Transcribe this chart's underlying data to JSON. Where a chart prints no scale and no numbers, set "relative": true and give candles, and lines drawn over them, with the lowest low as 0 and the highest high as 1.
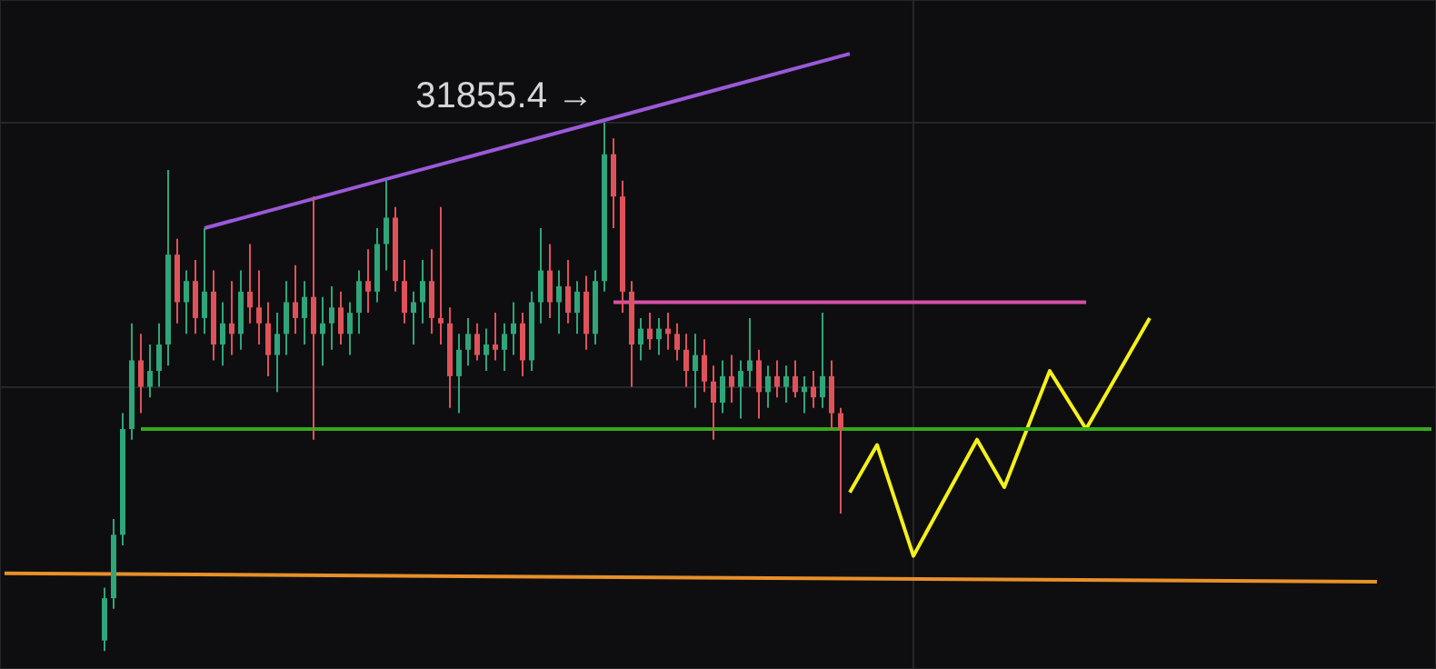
{
  "chart_data": {
    "type": "candlestick",
    "relative": true,
    "grid": true,
    "legend": false,
    "tick_labels": false,
    "categories": [
      null,
      null,
      null,
      null,
      null,
      null,
      null,
      null,
      null,
      null,
      null,
      null,
      null,
      null,
      null,
      null,
      null,
      null,
      null,
      null,
      null,
      null,
      null,
      null,
      null,
      null,
      null,
      null,
      null,
      null,
      null,
      null,
      null,
      null,
      null,
      null,
      null,
      null,
      null,
      null,
      null,
      null,
      null,
      null,
      null,
      null,
      null,
      null,
      null,
      null,
      null,
      null,
      null,
      null,
      null,
      null,
      null,
      null,
      null,
      null,
      null,
      null,
      null,
      null,
      null,
      null,
      null,
      null,
      null,
      null,
      null,
      null,
      null,
      null,
      null,
      null,
      null,
      null,
      null,
      null,
      null,
      null,
      null,
      null,
      null,
      null,
      null,
      null,
      null,
      null,
      null,
      null,
      null,
      null,
      null,
      null,
      null,
      null,
      null,
      null,
      null,
      null,
      null,
      null,
      null,
      null,
      null,
      null,
      null,
      null,
      null,
      null,
      null,
      null,
      null,
      null,
      null,
      null,
      null,
      null,
      null,
      null,
      null,
      null,
      null,
      null,
      null,
      null,
      null,
      null,
      null,
      null,
      null,
      null,
      null,
      null,
      null,
      null,
      null,
      null,
      null,
      null,
      null,
      null,
      null,
      null,
      null,
      null,
      null,
      null,
      null,
      null,
      null,
      null,
      null,
      null,
      null,
      null
    ],
    "ohlc": [
      null,
      null,
      null,
      null,
      null,
      null,
      null,
      null,
      null,
      null,
      null,
      [
        0.02,
        0.12,
        0,
        0.1
      ],
      [
        0.1,
        0.25,
        0.08,
        0.22
      ],
      [
        0.22,
        0.45,
        0.2,
        0.42
      ],
      [
        0.42,
        0.62,
        0.4,
        0.55
      ],
      [
        0.55,
        0.6,
        0.45,
        0.5
      ],
      [
        0.5,
        0.58,
        0.48,
        0.53
      ],
      [
        0.53,
        0.62,
        0.5,
        0.58
      ],
      [
        0.58,
        0.91,
        0.54,
        0.75
      ],
      [
        0.75,
        0.78,
        0.62,
        0.66
      ],
      [
        0.66,
        0.72,
        0.6,
        0.7
      ],
      [
        0.7,
        0.74,
        0.6,
        0.63
      ],
      [
        0.63,
        0.8,
        0.6,
        0.68
      ],
      [
        0.68,
        0.72,
        0.55,
        0.58
      ],
      [
        0.58,
        0.66,
        0.54,
        0.62
      ],
      [
        0.62,
        0.7,
        0.56,
        0.6
      ],
      [
        0.6,
        0.72,
        0.57,
        0.68
      ],
      [
        0.68,
        0.77,
        0.62,
        0.65
      ],
      [
        0.65,
        0.72,
        0.58,
        0.62
      ],
      [
        0.62,
        0.66,
        0.52,
        0.56
      ],
      [
        0.56,
        0.64,
        0.49,
        0.6
      ],
      [
        0.6,
        0.7,
        0.56,
        0.66
      ],
      [
        0.66,
        0.73,
        0.6,
        0.63
      ],
      [
        0.63,
        0.7,
        0.58,
        0.67
      ],
      [
        0.67,
        0.86,
        0.4,
        0.6
      ],
      [
        0.6,
        0.67,
        0.54,
        0.62
      ],
      [
        0.62,
        0.69,
        0.57,
        0.65
      ],
      [
        0.65,
        0.68,
        0.58,
        0.6
      ],
      [
        0.6,
        0.66,
        0.56,
        0.64
      ],
      [
        0.64,
        0.72,
        0.6,
        0.7
      ],
      [
        0.7,
        0.76,
        0.64,
        0.68
      ],
      [
        0.68,
        0.8,
        0.66,
        0.77
      ],
      [
        0.77,
        0.89,
        0.72,
        0.82
      ],
      [
        0.82,
        0.84,
        0.68,
        0.7
      ],
      [
        0.7,
        0.74,
        0.62,
        0.64
      ],
      [
        0.64,
        0.68,
        0.58,
        0.66
      ],
      [
        0.66,
        0.74,
        0.62,
        0.7
      ],
      [
        0.7,
        0.76,
        0.6,
        0.63
      ],
      [
        0.63,
        0.84,
        0.58,
        0.62
      ],
      [
        0.62,
        0.65,
        0.46,
        0.52
      ],
      [
        0.52,
        0.6,
        0.45,
        0.57
      ],
      [
        0.57,
        0.63,
        0.54,
        0.6
      ],
      [
        0.6,
        0.62,
        0.55,
        0.56
      ],
      [
        0.56,
        0.61,
        0.53,
        0.58
      ],
      [
        0.58,
        0.64,
        0.55,
        0.57
      ],
      [
        0.57,
        0.62,
        0.53,
        0.6
      ],
      [
        0.6,
        0.66,
        0.56,
        0.62
      ],
      [
        0.62,
        0.64,
        0.52,
        0.55
      ],
      [
        0.55,
        0.68,
        0.53,
        0.66
      ],
      [
        0.66,
        0.8,
        0.62,
        0.72
      ],
      [
        0.72,
        0.77,
        0.63,
        0.66
      ],
      [
        0.66,
        0.72,
        0.6,
        0.69
      ],
      [
        0.69,
        0.74,
        0.62,
        0.64
      ],
      [
        0.64,
        0.7,
        0.6,
        0.68
      ],
      [
        0.68,
        0.71,
        0.57,
        0.6
      ],
      [
        0.6,
        0.72,
        0.58,
        0.7
      ],
      [
        0.7,
        1,
        0.68,
        0.94
      ],
      [
        0.94,
        0.97,
        0.8,
        0.86
      ],
      [
        0.86,
        0.89,
        0.64,
        0.68
      ],
      [
        0.68,
        0.7,
        0.5,
        0.58
      ],
      [
        0.58,
        0.63,
        0.55,
        0.61
      ],
      [
        0.61,
        0.64,
        0.57,
        0.59
      ],
      [
        0.59,
        0.63,
        0.56,
        0.61
      ],
      [
        0.61,
        0.64,
        0.57,
        0.6
      ],
      [
        0.6,
        0.62,
        0.55,
        0.57
      ],
      [
        0.57,
        0.6,
        0.5,
        0.53
      ],
      [
        0.53,
        0.6,
        0.46,
        0.56
      ],
      [
        0.56,
        0.59,
        0.49,
        0.51
      ],
      [
        0.51,
        0.54,
        0.4,
        0.47
      ],
      [
        0.47,
        0.55,
        0.45,
        0.52
      ],
      [
        0.52,
        0.56,
        0.47,
        0.5
      ],
      [
        0.5,
        0.55,
        0.44,
        0.53
      ],
      [
        0.53,
        0.63,
        0.5,
        0.55
      ],
      [
        0.55,
        0.57,
        0.44,
        0.49
      ],
      [
        0.49,
        0.54,
        0.46,
        0.52
      ],
      [
        0.52,
        0.55,
        0.48,
        0.5
      ],
      [
        0.5,
        0.54,
        0.47,
        0.52
      ],
      [
        0.52,
        0.55,
        0.48,
        0.49
      ],
      [
        0.49,
        0.52,
        0.45,
        0.5
      ],
      [
        0.5,
        0.53,
        0.46,
        0.48
      ],
      [
        0.48,
        0.64,
        0.46,
        0.52
      ],
      [
        0.52,
        0.55,
        0.42,
        0.45
      ],
      [
        0.45,
        0.46,
        0.26,
        0.42
      ],
      null,
      null,
      null,
      null,
      null,
      null,
      null,
      null,
      null,
      null,
      null,
      null,
      null,
      null,
      null,
      null,
      null,
      null,
      null,
      null,
      null,
      null,
      null,
      null,
      null,
      null,
      null,
      null,
      null,
      null,
      null,
      null,
      null,
      null,
      null,
      null,
      null,
      null,
      null,
      null,
      null,
      null,
      null,
      null,
      null,
      null,
      null,
      null,
      null,
      null,
      null,
      null,
      null,
      null,
      null,
      null,
      null,
      null,
      null,
      null,
      null,
      null,
      null,
      null,
      null
    ],
    "series": [
      {
        "type": "line",
        "color": "#9b59d9",
        "values": [
          null,
          null,
          null,
          null,
          null,
          null,
          null,
          null,
          null,
          null,
          null,
          null,
          null,
          null,
          null,
          null,
          null,
          null,
          null,
          null,
          null,
          null,
          0.8,
          null,
          null,
          null,
          null,
          null,
          null,
          null,
          null,
          null,
          null,
          null,
          null,
          null,
          null,
          null,
          null,
          null,
          null,
          null,
          null,
          null,
          null,
          null,
          null,
          null,
          null,
          null,
          null,
          null,
          null,
          null,
          null,
          null,
          null,
          null,
          null,
          null,
          null,
          null,
          null,
          null,
          null,
          null,
          null,
          null,
          null,
          null,
          null,
          null,
          null,
          null,
          null,
          null,
          null,
          null,
          null,
          null,
          null,
          null,
          null,
          null,
          null,
          null,
          null,
          null,
          null,
          null,
          null,
          null,
          null,
          1.13,
          null,
          null,
          null,
          null,
          null,
          null,
          null,
          null,
          null,
          null,
          null,
          null,
          null,
          null,
          null,
          null,
          null,
          null,
          null,
          null,
          null,
          null,
          null,
          null,
          null,
          null,
          null,
          null,
          null,
          null,
          null,
          null,
          null,
          null,
          null,
          null,
          null,
          null,
          null,
          null,
          null,
          null,
          null,
          null,
          null,
          null,
          null,
          null,
          null,
          null,
          null,
          null,
          null,
          null,
          null,
          null,
          null,
          null,
          null,
          null,
          null,
          null,
          null,
          null
        ]
      },
      {
        "type": "line",
        "color": "#d84fa6",
        "values": [
          null,
          null,
          null,
          null,
          null,
          null,
          null,
          null,
          null,
          null,
          null,
          null,
          null,
          null,
          null,
          null,
          null,
          null,
          null,
          null,
          null,
          null,
          null,
          null,
          null,
          null,
          null,
          null,
          null,
          null,
          null,
          null,
          null,
          null,
          null,
          null,
          null,
          null,
          null,
          null,
          null,
          null,
          null,
          null,
          null,
          null,
          null,
          null,
          null,
          null,
          null,
          null,
          null,
          null,
          null,
          null,
          null,
          null,
          null,
          null,
          null,
          null,
          null,
          null,
          null,
          null,
          null,
          0.66,
          null,
          null,
          null,
          null,
          null,
          null,
          null,
          null,
          null,
          null,
          null,
          null,
          null,
          null,
          null,
          null,
          null,
          null,
          null,
          null,
          null,
          null,
          null,
          null,
          null,
          null,
          null,
          null,
          null,
          null,
          null,
          null,
          null,
          null,
          null,
          null,
          null,
          null,
          null,
          null,
          null,
          null,
          null,
          null,
          null,
          null,
          null,
          null,
          null,
          null,
          null,
          0.66,
          null,
          null,
          null,
          null,
          null,
          null,
          null,
          null,
          null,
          null,
          null,
          null,
          null,
          null,
          null,
          null,
          null,
          null,
          null,
          null,
          null,
          null,
          null,
          null,
          null,
          null,
          null,
          null,
          null,
          null,
          null,
          null,
          null,
          null,
          null,
          null,
          null,
          null
        ]
      },
      {
        "type": "line",
        "color": "#35a81e",
        "values": [
          null,
          null,
          null,
          null,
          null,
          null,
          null,
          null,
          null,
          null,
          null,
          null,
          null,
          null,
          null,
          0.42,
          null,
          null,
          null,
          null,
          null,
          null,
          null,
          null,
          null,
          null,
          null,
          null,
          null,
          null,
          null,
          null,
          null,
          null,
          null,
          null,
          null,
          null,
          null,
          null,
          null,
          null,
          null,
          null,
          null,
          null,
          null,
          null,
          null,
          null,
          null,
          null,
          null,
          null,
          null,
          null,
          null,
          null,
          null,
          null,
          null,
          null,
          null,
          null,
          null,
          null,
          null,
          null,
          null,
          null,
          null,
          null,
          null,
          null,
          null,
          null,
          null,
          null,
          null,
          null,
          null,
          null,
          null,
          null,
          null,
          null,
          null,
          null,
          null,
          null,
          null,
          null,
          null,
          null,
          null,
          null,
          null,
          null,
          null,
          null,
          null,
          null,
          null,
          null,
          null,
          null,
          null,
          null,
          null,
          null,
          null,
          null,
          null,
          null,
          null,
          null,
          null,
          null,
          null,
          null,
          null,
          null,
          null,
          null,
          null,
          null,
          null,
          null,
          null,
          null,
          null,
          null,
          null,
          null,
          null,
          null,
          null,
          null,
          null,
          null,
          null,
          null,
          null,
          null,
          null,
          null,
          null,
          null,
          null,
          null,
          null,
          null,
          null,
          null,
          null,
          null,
          null,
          0.42
        ]
      },
      {
        "type": "line",
        "color": "#e8902a",
        "values": [
          0.147,
          null,
          null,
          null,
          null,
          null,
          null,
          null,
          null,
          null,
          null,
          null,
          null,
          null,
          null,
          null,
          null,
          null,
          null,
          null,
          null,
          null,
          null,
          null,
          null,
          null,
          null,
          null,
          null,
          null,
          null,
          null,
          null,
          null,
          null,
          null,
          null,
          null,
          null,
          null,
          null,
          null,
          null,
          null,
          null,
          null,
          null,
          null,
          null,
          null,
          null,
          null,
          null,
          null,
          null,
          null,
          null,
          null,
          null,
          null,
          null,
          null,
          null,
          null,
          null,
          null,
          null,
          null,
          null,
          null,
          null,
          null,
          null,
          null,
          null,
          null,
          null,
          null,
          null,
          null,
          null,
          null,
          null,
          null,
          null,
          null,
          null,
          null,
          null,
          null,
          null,
          null,
          null,
          null,
          null,
          null,
          null,
          null,
          null,
          null,
          null,
          null,
          null,
          null,
          null,
          null,
          null,
          null,
          null,
          null,
          null,
          null,
          null,
          null,
          null,
          null,
          null,
          null,
          null,
          null,
          null,
          null,
          null,
          null,
          null,
          null,
          null,
          null,
          null,
          null,
          null,
          null,
          null,
          null,
          null,
          null,
          null,
          null,
          null,
          null,
          null,
          null,
          null,
          null,
          null,
          null,
          null,
          null,
          null,
          null,
          null,
          0.131,
          null,
          null,
          null,
          null,
          null,
          null
        ]
      },
      {
        "type": "line",
        "color": "#f5f019",
        "values": [
          null,
          null,
          null,
          null,
          null,
          null,
          null,
          null,
          null,
          null,
          null,
          null,
          null,
          null,
          null,
          null,
          null,
          null,
          null,
          null,
          null,
          null,
          null,
          null,
          null,
          null,
          null,
          null,
          null,
          null,
          null,
          null,
          null,
          null,
          null,
          null,
          null,
          null,
          null,
          null,
          null,
          null,
          null,
          null,
          null,
          null,
          null,
          null,
          null,
          null,
          null,
          null,
          null,
          null,
          null,
          null,
          null,
          null,
          null,
          null,
          null,
          null,
          null,
          null,
          null,
          null,
          null,
          null,
          null,
          null,
          null,
          null,
          null,
          null,
          null,
          null,
          null,
          null,
          null,
          null,
          null,
          null,
          null,
          null,
          null,
          null,
          null,
          null,
          null,
          null,
          null,
          null,
          null,
          0.3,
          null,
          null,
          0.39,
          null,
          null,
          null,
          0.18,
          null,
          null,
          null,
          null,
          null,
          null,
          0.4,
          null,
          null,
          0.31,
          null,
          null,
          null,
          null,
          0.53,
          null,
          null,
          null,
          0.42,
          null,
          null,
          null,
          null,
          null,
          null,
          0.63,
          null,
          null,
          null,
          null,
          null,
          null,
          null,
          null,
          null,
          null,
          null,
          null,
          null,
          null,
          null,
          null,
          null,
          null,
          null,
          null,
          null,
          null,
          null,
          null,
          null,
          null,
          null,
          null,
          null,
          null,
          null
        ]
      }
    ],
    "annotations": [
      "31855.4 →"
    ]
  }
}
